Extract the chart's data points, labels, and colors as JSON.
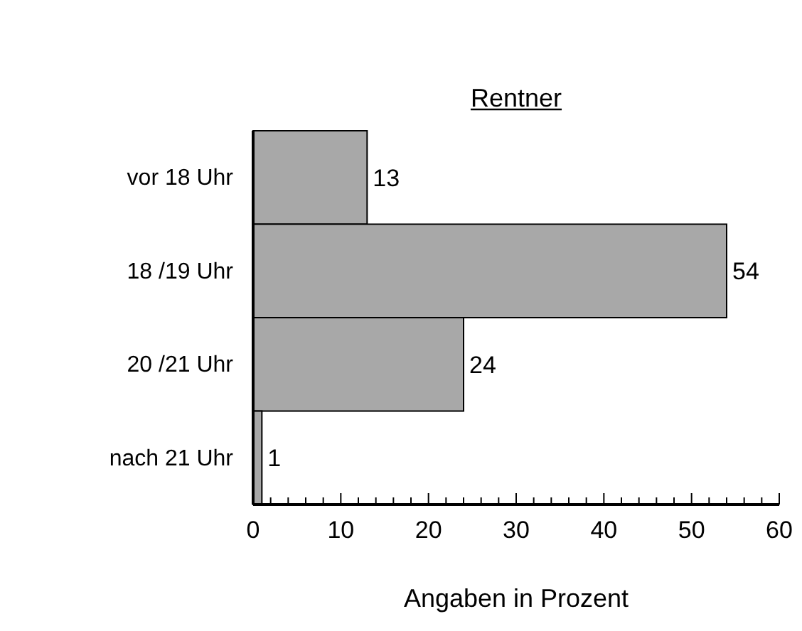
{
  "chart_data": {
    "type": "bar",
    "orientation": "horizontal",
    "title": "Rentner",
    "xlabel": "Angaben in Prozent",
    "categories": [
      "vor 18 Uhr",
      "18 /19 Uhr",
      "20 /21 Uhr",
      "nach 21 Uhr"
    ],
    "values": [
      13,
      54,
      24,
      1
    ],
    "color": "#a8a8a8",
    "data_labels": true,
    "grid": false,
    "xlim": [
      0,
      60
    ],
    "xticks": [
      0,
      {
        "value": 2,
        "label": null
      },
      {
        "value": 4,
        "label": null
      },
      {
        "value": 6,
        "label": null
      },
      {
        "value": 8,
        "label": null
      },
      10,
      {
        "value": 12,
        "label": null
      },
      {
        "value": 14,
        "label": null
      },
      {
        "value": 16,
        "label": null
      },
      {
        "value": 18,
        "label": null
      },
      20,
      {
        "value": 22,
        "label": null
      },
      {
        "value": 24,
        "label": null
      },
      {
        "value": 26,
        "label": null
      },
      {
        "value": 28,
        "label": null
      },
      30,
      {
        "value": 32,
        "label": null
      },
      {
        "value": 34,
        "label": null
      },
      {
        "value": 36,
        "label": null
      },
      {
        "value": 38,
        "label": null
      },
      40,
      {
        "value": 42,
        "label": null
      },
      {
        "value": 44,
        "label": null
      },
      {
        "value": 46,
        "label": null
      },
      {
        "value": 48,
        "label": null
      },
      50,
      {
        "value": 52,
        "label": null
      },
      {
        "value": 54,
        "label": null
      },
      {
        "value": 56,
        "label": null
      },
      {
        "value": 58,
        "label": null
      },
      60
    ]
  }
}
